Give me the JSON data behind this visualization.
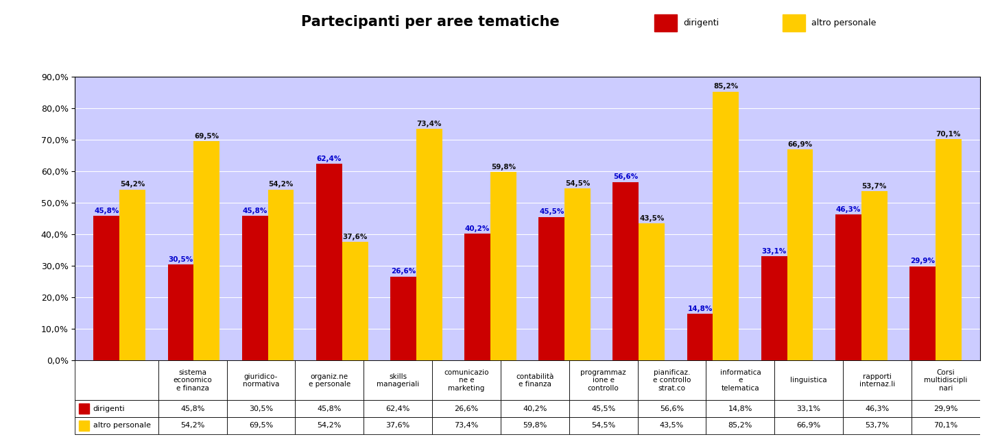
{
  "title": "Partecipanti per aree tematiche",
  "categories": [
    "sistema\neconomico\ne finanza",
    "giuridico-\nnormativa",
    "organiz.ne\ne personale",
    "skills\nmanageriali",
    "comunicazio\nne e\nmarketing",
    "contabilità\ne finanza",
    "programmaz\nione e\ncontrollo",
    "pianificaz.\ne controllo\nstrat.co",
    "informatica\ne\ntelematica",
    "linguistica",
    "rapporti\ninternaz.li",
    "Corsi\nmultidiscipli\nnari"
  ],
  "dirigenti": [
    45.8,
    30.5,
    45.8,
    62.4,
    26.6,
    40.2,
    45.5,
    56.6,
    14.8,
    33.1,
    46.3,
    29.9
  ],
  "altro_personale": [
    54.2,
    69.5,
    54.2,
    37.6,
    73.4,
    59.8,
    54.5,
    43.5,
    85.2,
    66.9,
    53.7,
    70.1
  ],
  "color_dirigenti": "#cc0000",
  "color_altro": "#ffcc00",
  "background_plot": "#ccccff",
  "background_fig": "#ffffff",
  "ylim": [
    0,
    90
  ],
  "yticks": [
    0,
    10,
    20,
    30,
    40,
    50,
    60,
    70,
    80,
    90
  ],
  "legend_label_1": "dirigenti",
  "legend_label_2": "altro personale",
  "table_label_1": "dirigenti",
  "table_label_2": "altro personale",
  "bar_width": 0.35
}
